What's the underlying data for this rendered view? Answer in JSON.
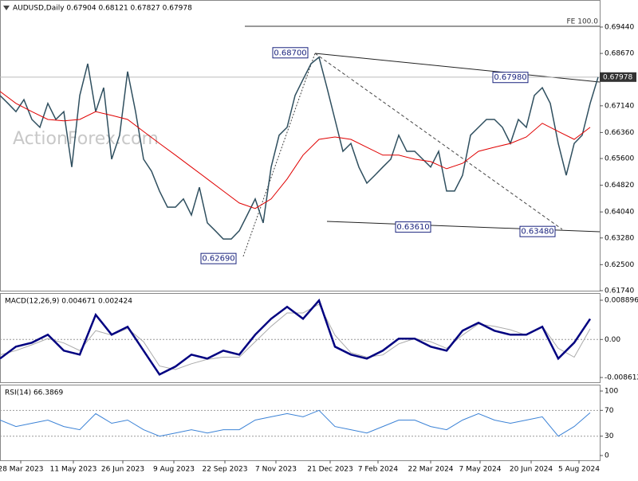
{
  "watermark": "ActionForex.com",
  "chart_data": [
    {
      "type": "line",
      "title": "AUDUSD,Daily 0.67904 0.68121 0.67827 0.67978",
      "xlim": [
        0,
        376
      ],
      "ylim": [
        0.6174,
        0.7023
      ],
      "yticks": [
        {
          "value": 0.6944,
          "label": "0.69440"
        },
        {
          "value": 0.6867,
          "label": "0.68670"
        },
        {
          "value": 0.6714,
          "label": "0.67140"
        },
        {
          "value": 0.6636,
          "label": "0.66360"
        },
        {
          "value": 0.656,
          "label": "0.65600"
        },
        {
          "value": 0.6482,
          "label": "0.64820"
        },
        {
          "value": 0.6404,
          "label": "0.64040"
        },
        {
          "value": 0.6328,
          "label": "0.63280"
        },
        {
          "value": 0.625,
          "label": "0.62500"
        },
        {
          "value": 0.6174,
          "label": "0.61740"
        }
      ],
      "last_price": {
        "value": 0.67978,
        "label": "0.67978"
      },
      "fe_label": "FE 100.0",
      "annotations": [
        {
          "x": 197,
          "value": 0.687,
          "label": "0.68700"
        },
        {
          "x": 335,
          "value": 0.6798,
          "label": "0.67980"
        },
        {
          "x": 274,
          "value": 0.6361,
          "label": "0.63610"
        },
        {
          "x": 352,
          "value": 0.6348,
          "label": "0.63480"
        },
        {
          "x": 152,
          "value": 0.6269,
          "label": "0.62690"
        }
      ],
      "series": [
        {
          "color": "#2f4f5f",
          "x": [
            0,
            5,
            10,
            15,
            20,
            25,
            30,
            35,
            40,
            45,
            50,
            55,
            60,
            65,
            70,
            75,
            80,
            85,
            90,
            95,
            100,
            105,
            110,
            115,
            120,
            125,
            130,
            135,
            140,
            145,
            150,
            155,
            160,
            165,
            170,
            175,
            180,
            185,
            190,
            195,
            200,
            205,
            210,
            215,
            220,
            225,
            230,
            235,
            240,
            245,
            250,
            255,
            260,
            265,
            270,
            275,
            280,
            285,
            290,
            295,
            300,
            305,
            310,
            315,
            320,
            325,
            330,
            335,
            340,
            345,
            350,
            355,
            360,
            365,
            370,
            375
          ],
          "values": [
            0.6744,
            0.6721,
            0.6697,
            0.6732,
            0.6674,
            0.6651,
            0.6721,
            0.6674,
            0.6697,
            0.6535,
            0.6744,
            0.6837,
            0.6697,
            0.6767,
            0.6558,
            0.6628,
            0.6814,
            0.6697,
            0.6558,
            0.6523,
            0.6465,
            0.6418,
            0.6418,
            0.6442,
            0.6395,
            0.6476,
            0.6372,
            0.6349,
            0.6325,
            0.6325,
            0.6349,
            0.6395,
            0.6442,
            0.6372,
            0.6535,
            0.6628,
            0.6651,
            0.6744,
            0.6791,
            0.6837,
            0.6856,
            0.6767,
            0.6674,
            0.6581,
            0.6604,
            0.6535,
            0.6488,
            0.6511,
            0.6535,
            0.6558,
            0.6628,
            0.6581,
            0.6581,
            0.6558,
            0.6535,
            0.6581,
            0.6465,
            0.6465,
            0.6511,
            0.6628,
            0.6651,
            0.6674,
            0.6674,
            0.6651,
            0.6604,
            0.6674,
            0.6651,
            0.6744,
            0.6767,
            0.6721,
            0.6604,
            0.6511,
            0.6604,
            0.6628,
            0.6721,
            0.67978
          ]
        },
        {
          "color": "#e00000",
          "x": [
            0,
            10,
            20,
            30,
            40,
            50,
            60,
            70,
            80,
            90,
            100,
            110,
            120,
            130,
            140,
            150,
            160,
            170,
            180,
            190,
            200,
            210,
            220,
            230,
            240,
            250,
            260,
            270,
            280,
            290,
            300,
            310,
            320,
            330,
            340,
            350,
            360,
            370
          ],
          "values": [
            0.6756,
            0.6721,
            0.6697,
            0.6674,
            0.667,
            0.6674,
            0.6697,
            0.6686,
            0.6674,
            0.6639,
            0.6604,
            0.657,
            0.6535,
            0.65,
            0.6465,
            0.643,
            0.6414,
            0.6442,
            0.65,
            0.657,
            0.6616,
            0.6623,
            0.6616,
            0.6593,
            0.657,
            0.657,
            0.6558,
            0.6551,
            0.653,
            0.6546,
            0.6581,
            0.6593,
            0.6604,
            0.6623,
            0.6663,
            0.6639,
            0.6616,
            0.6651
          ]
        }
      ]
    },
    {
      "type": "line",
      "title": "MACD(12,26,9) 0.004671 0.002424",
      "xlim": [
        0,
        376
      ],
      "ylim": [
        -0.00969,
        0.01052
      ],
      "yticks": [
        0.008896,
        {
          "value": 0,
          "label": "0.00"
        },
        -0.008612
      ],
      "series": [
        {
          "color": "#aaaaaa",
          "x": [
            0,
            10,
            20,
            30,
            40,
            50,
            60,
            70,
            80,
            90,
            100,
            110,
            120,
            130,
            140,
            150,
            160,
            170,
            180,
            190,
            200,
            210,
            220,
            230,
            240,
            250,
            260,
            270,
            280,
            290,
            300,
            310,
            320,
            330,
            340,
            350,
            360,
            370
          ],
          "values": [
            -0.0035,
            -0.0025,
            -0.0012,
            0.0002,
            -0.0008,
            -0.0025,
            0.002,
            0.001,
            0.0025,
            -0.0005,
            -0.006,
            -0.0068,
            -0.0055,
            -0.0045,
            -0.004,
            -0.004,
            -0.0005,
            0.003,
            0.006,
            0.006,
            0.008,
            0.001,
            -0.003,
            -0.004,
            -0.0035,
            -0.001,
            0.0002,
            -0.0005,
            -0.002,
            0.001,
            0.0035,
            0.003,
            0.0022,
            0.001,
            0.003,
            -0.002,
            -0.004,
            0.002424
          ]
        },
        {
          "color": "#000080",
          "x": [
            0,
            10,
            20,
            30,
            40,
            50,
            60,
            70,
            80,
            90,
            100,
            110,
            120,
            130,
            140,
            150,
            160,
            170,
            180,
            190,
            200,
            210,
            220,
            230,
            240,
            250,
            260,
            270,
            280,
            290,
            300,
            310,
            320,
            330,
            340,
            350,
            360,
            370
          ],
          "values": [
            -0.00433,
            -0.00162,
            -0.00072,
            0.00108,
            -0.00253,
            -0.00343,
            0.00559,
            0.00108,
            0.00289,
            -0.00253,
            -0.00794,
            -0.00613,
            -0.00343,
            -0.00433,
            -0.00253,
            -0.00343,
            0.00108,
            0.00469,
            0.0074,
            0.00469,
            0.00884,
            -0.00162,
            -0.00343,
            -0.00433,
            -0.00253,
            0.00018,
            0.00018,
            -0.00162,
            -0.00253,
            0.00198,
            0.00379,
            0.00198,
            0.00108,
            0.00108,
            0.00289,
            -0.00433,
            -0.00072,
            0.004671
          ]
        }
      ]
    },
    {
      "type": "line",
      "title": "RSI(14) 66.3869",
      "xlim": [
        0,
        376
      ],
      "ylim": [
        -7.4,
        109.9
      ],
      "yticks": [
        100,
        70,
        30,
        0
      ],
      "xticks": [
        {
          "value": 13,
          "label": "28 Mar 2023"
        },
        {
          "value": 46,
          "label": "11 May 2023"
        },
        {
          "value": 77,
          "label": "26 Jun 2023"
        },
        {
          "value": 109,
          "label": "9 Aug 2023"
        },
        {
          "value": 141,
          "label": "22 Sep 2023"
        },
        {
          "value": 173,
          "label": "7 Nov 2023"
        },
        {
          "value": 207,
          "label": "21 Dec 2023"
        },
        {
          "value": 237,
          "label": "7 Feb 2024"
        },
        {
          "value": 270,
          "label": "22 Mar 2024"
        },
        {
          "value": 301,
          "label": "7 May 2024"
        },
        {
          "value": 333,
          "label": "20 Jun 2024"
        },
        {
          "value": 363,
          "label": "5 Aug 2024"
        }
      ],
      "series": [
        {
          "color": "#3b82d6",
          "x": [
            0,
            10,
            20,
            30,
            40,
            50,
            60,
            70,
            80,
            90,
            100,
            110,
            120,
            130,
            140,
            150,
            160,
            170,
            180,
            190,
            200,
            210,
            220,
            230,
            240,
            250,
            260,
            270,
            280,
            290,
            300,
            310,
            320,
            330,
            340,
            350,
            360,
            370
          ],
          "values": [
            55,
            45,
            50,
            55,
            45,
            40,
            65,
            50,
            55,
            40,
            30,
            35,
            40,
            35,
            40,
            40,
            55,
            60,
            65,
            60,
            70,
            45,
            40,
            35,
            45,
            55,
            55,
            45,
            40,
            55,
            65,
            55,
            50,
            55,
            60,
            30,
            45,
            66.3869
          ]
        }
      ]
    }
  ]
}
